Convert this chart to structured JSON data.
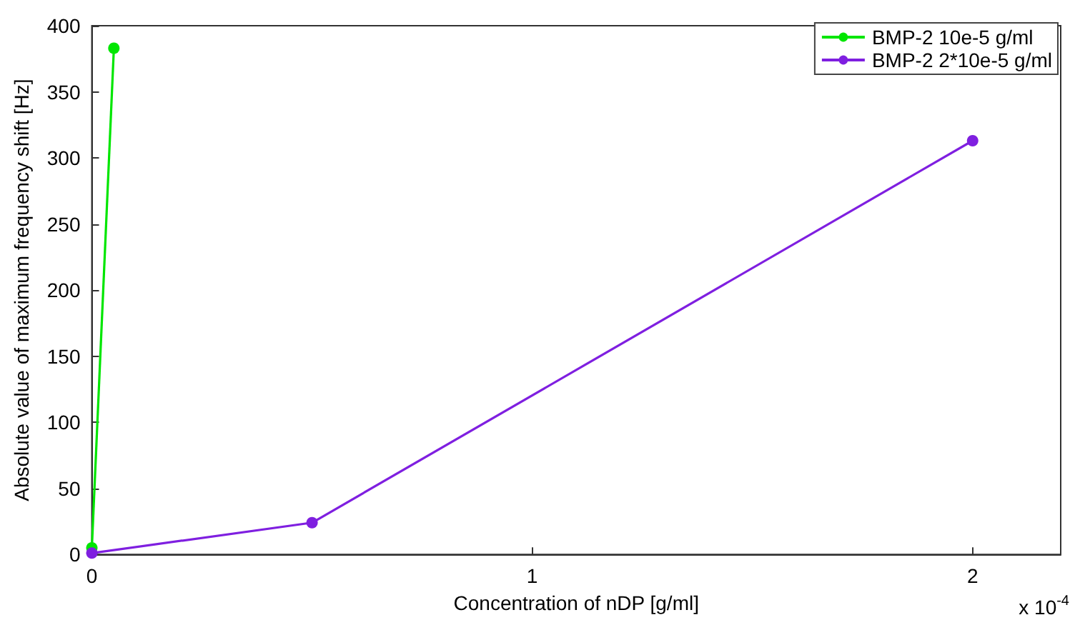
{
  "chart_data": {
    "type": "line",
    "xlabel": "Concentration of nDP [g/ml]",
    "ylabel": "Absolute value of maximum frequency shift [Hz]",
    "series": [
      {
        "name": "BMP-2 10e-5 g/ml",
        "color": "#00e600",
        "x": [
          0,
          0.05
        ],
        "values": [
          5,
          383
        ]
      },
      {
        "name": "BMP-2 2*10e-5 g/ml",
        "color": "#7f1fe0",
        "x": [
          0,
          0.5,
          2
        ],
        "values": [
          1,
          24,
          313
        ]
      }
    ],
    "xlim": [
      0,
      2.2
    ],
    "xticks": [
      0,
      1,
      2
    ],
    "ylim": [
      0,
      400
    ],
    "yticks": [
      0,
      50,
      100,
      150,
      200,
      250,
      300,
      350,
      400
    ],
    "annotations": [
      "x 10$^{-4}$"
    ],
    "legend": "top right",
    "grid": false,
    "marker": "circle",
    "line_style": "solid"
  }
}
